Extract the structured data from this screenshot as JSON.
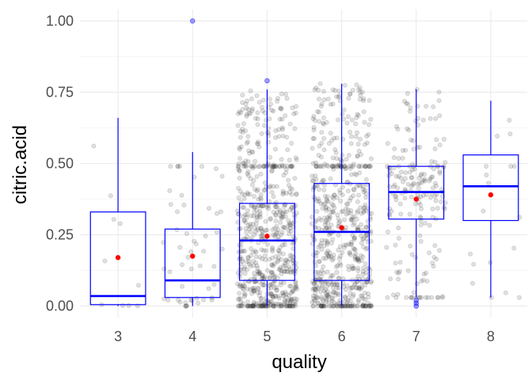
{
  "chart_data": {
    "type": "box",
    "title": "",
    "xlabel": "quality",
    "ylabel": "citric.acid",
    "categories": [
      "3",
      "4",
      "5",
      "6",
      "7",
      "8"
    ],
    "x_ticks": [
      "3",
      "4",
      "5",
      "6",
      "7",
      "8"
    ],
    "y_ticks": [
      "0.00",
      "0.25",
      "0.50",
      "0.75",
      "1.00"
    ],
    "ylim": [
      -0.04,
      1.04
    ],
    "grid": true,
    "legend": "none",
    "box_color": "#0000ff",
    "mean_color": "#ff0000",
    "jitter_color": "#333333",
    "boxes": [
      {
        "category": "3",
        "q1": 0.005,
        "median": 0.035,
        "q3": 0.33,
        "whisker_low": 0.0,
        "whisker_high": 0.66,
        "mean": 0.17,
        "outliers": []
      },
      {
        "category": "4",
        "q1": 0.03,
        "median": 0.09,
        "q3": 0.27,
        "whisker_low": 0.0,
        "whisker_high": 0.54,
        "mean": 0.175,
        "outliers": [
          1.0
        ]
      },
      {
        "category": "5",
        "q1": 0.09,
        "median": 0.23,
        "q3": 0.36,
        "whisker_low": 0.0,
        "whisker_high": 0.76,
        "mean": 0.245,
        "outliers": [
          0.79
        ]
      },
      {
        "category": "6",
        "q1": 0.09,
        "median": 0.26,
        "q3": 0.43,
        "whisker_low": 0.0,
        "whisker_high": 0.78,
        "mean": 0.275,
        "outliers": []
      },
      {
        "category": "7",
        "q1": 0.305,
        "median": 0.4,
        "q3": 0.49,
        "whisker_low": 0.03,
        "whisker_high": 0.76,
        "mean": 0.375,
        "outliers": [
          0.0,
          0.01,
          0.02
        ]
      },
      {
        "category": "8",
        "q1": 0.3,
        "median": 0.42,
        "q3": 0.53,
        "whisker_low": 0.03,
        "whisker_high": 0.72,
        "mean": 0.39,
        "outliers": []
      }
    ],
    "jitter_counts": [
      10,
      53,
      681,
      638,
      199,
      18
    ]
  }
}
